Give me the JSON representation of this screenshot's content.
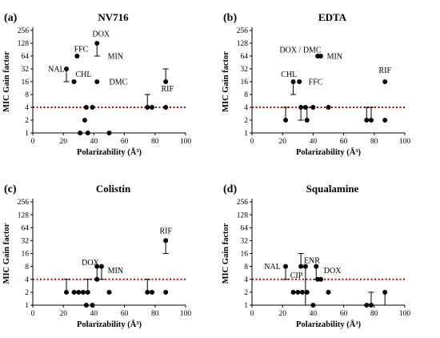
{
  "chart_data": [
    {
      "panel": "(a)",
      "title": "NV716",
      "type": "scatter",
      "xlabel": "Polarizability (Å³)",
      "ylabel": "MIC Gain factor",
      "xlim": [
        0,
        100
      ],
      "xticks": [
        0,
        20,
        40,
        60,
        80,
        100
      ],
      "ylim": [
        1,
        256
      ],
      "yscale": "log2",
      "yticks": [
        1,
        2,
        4,
        8,
        16,
        32,
        64,
        128,
        256
      ],
      "threshold": 4,
      "points": [
        {
          "x": 22,
          "y": 32,
          "err_low": 16
        },
        {
          "x": 27,
          "y": 16
        },
        {
          "x": 29,
          "y": 64
        },
        {
          "x": 31,
          "y": 1
        },
        {
          "x": 34,
          "y": 2
        },
        {
          "x": 35,
          "y": 4
        },
        {
          "x": 36,
          "y": 1
        },
        {
          "x": 39,
          "y": 4
        },
        {
          "x": 42,
          "y": 128,
          "err_low": 64
        },
        {
          "x": 42,
          "y": 16
        },
        {
          "x": 50,
          "y": 1
        },
        {
          "x": 75,
          "y": 4,
          "err_high": 8
        },
        {
          "x": 78,
          "y": 4
        },
        {
          "x": 87,
          "y": 16,
          "err_high": 32
        },
        {
          "x": 87,
          "y": 4
        }
      ],
      "annotations": [
        {
          "text": "DOX",
          "x": 39,
          "y": 215
        },
        {
          "text": "FFC",
          "x": 27,
          "y": 95
        },
        {
          "text": "MIN",
          "x": 49,
          "y": 64
        },
        {
          "text": "NAL",
          "x": 10,
          "y": 32
        },
        {
          "text": "CHL",
          "x": 28,
          "y": 24
        },
        {
          "text": "DMC",
          "x": 50,
          "y": 16
        },
        {
          "text": "RIF",
          "x": 84,
          "y": 11
        }
      ]
    },
    {
      "panel": "(b)",
      "title": "EDTA",
      "type": "scatter",
      "xlabel": "Polarizability (Å³)",
      "ylabel": "MIC Gain factor",
      "xlim": [
        0,
        100
      ],
      "xticks": [
        0,
        20,
        40,
        60,
        80,
        100
      ],
      "ylim": [
        1,
        256
      ],
      "yscale": "log2",
      "yticks": [
        1,
        2,
        4,
        8,
        16,
        32,
        64,
        128,
        256
      ],
      "threshold": 4,
      "points": [
        {
          "x": 22,
          "y": 2,
          "err_high": 4
        },
        {
          "x": 27,
          "y": 16,
          "err_low": 8
        },
        {
          "x": 31,
          "y": 16
        },
        {
          "x": 32,
          "y": 4,
          "err_low": 2
        },
        {
          "x": 35,
          "y": 4
        },
        {
          "x": 36,
          "y": 2,
          "err_high": 4
        },
        {
          "x": 40,
          "y": 4
        },
        {
          "x": 43,
          "y": 64
        },
        {
          "x": 45,
          "y": 64
        },
        {
          "x": 50,
          "y": 4
        },
        {
          "x": 75,
          "y": 2,
          "err_high": 4
        },
        {
          "x": 78,
          "y": 2,
          "err_high": 4
        },
        {
          "x": 87,
          "y": 16
        },
        {
          "x": 87,
          "y": 2
        }
      ],
      "annotations": [
        {
          "text": "DOX / DMC",
          "x": 18,
          "y": 90
        },
        {
          "text": "MIN",
          "x": 49,
          "y": 64
        },
        {
          "text": "RIF",
          "x": 83,
          "y": 30
        },
        {
          "text": "CHL",
          "x": 19,
          "y": 24
        },
        {
          "text": "FFC",
          "x": 37,
          "y": 16
        }
      ]
    },
    {
      "panel": "(c)",
      "title": "Colistin",
      "type": "scatter",
      "xlabel": "Polarizability (Å³)",
      "ylabel": "MIC Gain factor",
      "xlim": [
        0,
        100
      ],
      "xticks": [
        0,
        20,
        40,
        60,
        80,
        100
      ],
      "ylim": [
        1,
        256
      ],
      "yscale": "log2",
      "yticks": [
        1,
        2,
        4,
        8,
        16,
        32,
        64,
        128,
        256
      ],
      "threshold": 4,
      "points": [
        {
          "x": 22,
          "y": 2,
          "err_high": 4
        },
        {
          "x": 27,
          "y": 2
        },
        {
          "x": 30,
          "y": 2
        },
        {
          "x": 33,
          "y": 2
        },
        {
          "x": 35,
          "y": 1
        },
        {
          "x": 36,
          "y": 2,
          "err_high": 4
        },
        {
          "x": 39,
          "y": 1
        },
        {
          "x": 42,
          "y": 8,
          "err_low": 4
        },
        {
          "x": 42,
          "y": 4
        },
        {
          "x": 45,
          "y": 8,
          "err_low": 4
        },
        {
          "x": 50,
          "y": 2
        },
        {
          "x": 75,
          "y": 2,
          "err_high": 4
        },
        {
          "x": 78,
          "y": 2
        },
        {
          "x": 87,
          "y": 32,
          "err_low": 16
        },
        {
          "x": 87,
          "y": 2
        }
      ],
      "annotations": [
        {
          "text": "RIF",
          "x": 83,
          "y": 55
        },
        {
          "text": "DOX",
          "x": 32,
          "y": 10
        },
        {
          "text": "MIN",
          "x": 49,
          "y": 6.5
        }
      ]
    },
    {
      "panel": "(d)",
      "title": "Squalamine",
      "type": "scatter",
      "xlabel": "Polarizability (Å³)",
      "ylabel": "MIC Gain factor",
      "xlim": [
        0,
        100
      ],
      "xticks": [
        0,
        20,
        40,
        60,
        80,
        100
      ],
      "ylim": [
        1,
        256
      ],
      "yscale": "log2",
      "yticks": [
        1,
        2,
        4,
        8,
        16,
        32,
        64,
        128,
        256
      ],
      "threshold": 4,
      "points": [
        {
          "x": 22,
          "y": 8,
          "err_low": 4
        },
        {
          "x": 27,
          "y": 2
        },
        {
          "x": 30,
          "y": 2
        },
        {
          "x": 32,
          "y": 8,
          "err_high": 16
        },
        {
          "x": 33,
          "y": 2
        },
        {
          "x": 35,
          "y": 8,
          "err_low": 1
        },
        {
          "x": 36,
          "y": 2
        },
        {
          "x": 40,
          "y": 1
        },
        {
          "x": 42,
          "y": 8,
          "err_low": 4
        },
        {
          "x": 43,
          "y": 4
        },
        {
          "x": 45,
          "y": 4
        },
        {
          "x": 50,
          "y": 2
        },
        {
          "x": 75,
          "y": 1
        },
        {
          "x": 78,
          "y": 1,
          "err_high": 2
        },
        {
          "x": 87,
          "y": 2,
          "err_low": 1
        }
      ],
      "annotations": [
        {
          "text": "NAL",
          "x": 8,
          "y": 8
        },
        {
          "text": "ENR",
          "x": 34,
          "y": 11
        },
        {
          "text": "CIP",
          "x": 25,
          "y": 5
        },
        {
          "text": "DOX",
          "x": 47,
          "y": 6.5
        }
      ]
    }
  ]
}
